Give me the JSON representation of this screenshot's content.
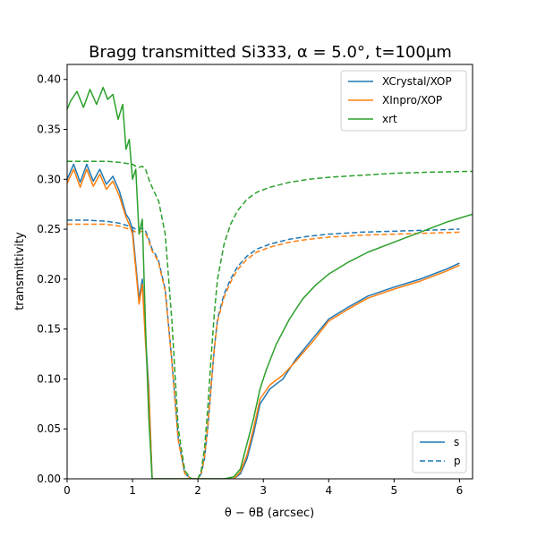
{
  "chart_data": {
    "type": "line",
    "title": "Bragg transmitted Si333, α = 5.0°, t=100μm",
    "xlabel": "θ − θB (arcsec)",
    "ylabel": "transmittivity",
    "xlim": [
      0,
      6.2
    ],
    "ylim": [
      0,
      0.415
    ],
    "x_ticks": [
      0,
      1,
      2,
      3,
      4,
      5,
      6
    ],
    "x_tick_labels": [
      "0",
      "1",
      "2",
      "3",
      "4",
      "5",
      "6"
    ],
    "y_ticks": [
      0.0,
      0.05,
      0.1,
      0.15,
      0.2,
      0.25,
      0.3,
      0.35,
      0.4
    ],
    "y_tick_labels": [
      "0.00",
      "0.05",
      "0.10",
      "0.15",
      "0.20",
      "0.25",
      "0.30",
      "0.35",
      "0.40"
    ],
    "grid": false,
    "legend_programs": {
      "placement": "top-right",
      "entries": [
        {
          "label": "XCrystal/XOP",
          "color": "#1f77b4"
        },
        {
          "label": "XInpro/XOP",
          "color": "#ff7f0e"
        },
        {
          "label": "xrt",
          "color": "#2ca02c"
        }
      ]
    },
    "legend_polarization": {
      "placement": "bottom-right",
      "entries": [
        {
          "label": "s",
          "style": "solid"
        },
        {
          "label": "p",
          "style": "dashed"
        }
      ]
    },
    "series": [
      {
        "name": "XCrystal/XOP",
        "polarization": "s",
        "color": "#1f77b4",
        "style": "solid",
        "x": [
          0.0,
          0.1,
          0.2,
          0.3,
          0.4,
          0.5,
          0.6,
          0.7,
          0.8,
          0.9,
          0.95,
          1.0,
          1.05,
          1.1,
          1.15,
          1.2,
          1.25,
          1.3,
          1.5,
          1.8,
          2.0,
          2.2,
          2.4,
          2.55,
          2.65,
          2.75,
          2.85,
          2.95,
          3.1,
          3.3,
          3.5,
          3.75,
          4.0,
          4.3,
          4.6,
          5.0,
          5.4,
          5.8,
          6.0
        ],
        "y": [
          0.3,
          0.315,
          0.297,
          0.315,
          0.298,
          0.31,
          0.295,
          0.303,
          0.288,
          0.265,
          0.26,
          0.25,
          0.215,
          0.18,
          0.2,
          0.14,
          0.09,
          0.0,
          0.0,
          0.0,
          0.0,
          0.0,
          0.0,
          0.0,
          0.005,
          0.02,
          0.045,
          0.075,
          0.09,
          0.1,
          0.12,
          0.14,
          0.16,
          0.172,
          0.183,
          0.192,
          0.2,
          0.21,
          0.216
        ]
      },
      {
        "name": "XInpro/XOP",
        "polarization": "s",
        "color": "#ff7f0e",
        "style": "solid",
        "x": [
          0.0,
          0.1,
          0.2,
          0.3,
          0.4,
          0.5,
          0.6,
          0.7,
          0.8,
          0.9,
          0.95,
          1.0,
          1.05,
          1.1,
          1.15,
          1.2,
          1.25,
          1.3,
          1.5,
          1.8,
          2.0,
          2.2,
          2.4,
          2.55,
          2.65,
          2.75,
          2.85,
          2.95,
          3.1,
          3.3,
          3.5,
          3.75,
          4.0,
          4.3,
          4.6,
          5.0,
          5.4,
          5.8,
          6.0
        ],
        "y": [
          0.296,
          0.31,
          0.292,
          0.31,
          0.293,
          0.305,
          0.29,
          0.298,
          0.283,
          0.262,
          0.255,
          0.245,
          0.21,
          0.175,
          0.195,
          0.135,
          0.085,
          0.0,
          0.0,
          0.0,
          0.0,
          0.0,
          0.0,
          0.0,
          0.007,
          0.024,
          0.05,
          0.08,
          0.094,
          0.104,
          0.118,
          0.137,
          0.158,
          0.17,
          0.181,
          0.19,
          0.198,
          0.208,
          0.214
        ]
      },
      {
        "name": "xrt",
        "polarization": "s",
        "color": "#2ca02c",
        "style": "solid",
        "x": [
          0.0,
          0.05,
          0.15,
          0.25,
          0.35,
          0.45,
          0.55,
          0.62,
          0.7,
          0.78,
          0.85,
          0.9,
          0.95,
          1.0,
          1.05,
          1.1,
          1.15,
          1.2,
          1.25,
          1.3,
          1.5,
          1.8,
          2.0,
          2.2,
          2.4,
          2.55,
          2.65,
          2.75,
          2.85,
          2.95,
          3.05,
          3.2,
          3.4,
          3.6,
          3.8,
          4.0,
          4.3,
          4.6,
          5.0,
          5.4,
          5.8,
          6.2
        ],
        "y": [
          0.37,
          0.378,
          0.388,
          0.372,
          0.39,
          0.375,
          0.392,
          0.38,
          0.385,
          0.36,
          0.375,
          0.33,
          0.34,
          0.3,
          0.31,
          0.245,
          0.26,
          0.15,
          0.06,
          0.0,
          0.0,
          0.0,
          0.0,
          0.0,
          0.0,
          0.002,
          0.01,
          0.035,
          0.06,
          0.09,
          0.11,
          0.135,
          0.16,
          0.18,
          0.194,
          0.205,
          0.217,
          0.227,
          0.237,
          0.247,
          0.257,
          0.265
        ]
      },
      {
        "name": "XCrystal/XOP",
        "polarization": "p",
        "color": "#1f77b4",
        "style": "dashed",
        "x": [
          0.0,
          0.3,
          0.6,
          0.8,
          0.9,
          1.0,
          1.05,
          1.1,
          1.15,
          1.2,
          1.25,
          1.3,
          1.35,
          1.4,
          1.5,
          1.6,
          1.7,
          1.8,
          1.9,
          2.0,
          2.05,
          2.1,
          2.15,
          2.2,
          2.25,
          2.3,
          2.4,
          2.5,
          2.6,
          2.75,
          2.9,
          3.1,
          3.4,
          3.7,
          4.0,
          4.5,
          5.0,
          5.5,
          6.0
        ],
        "y": [
          0.259,
          0.259,
          0.258,
          0.256,
          0.254,
          0.252,
          0.25,
          0.25,
          0.251,
          0.248,
          0.24,
          0.23,
          0.225,
          0.218,
          0.19,
          0.12,
          0.04,
          0.005,
          0.0,
          0.0,
          0.005,
          0.02,
          0.05,
          0.09,
          0.13,
          0.16,
          0.185,
          0.2,
          0.212,
          0.223,
          0.23,
          0.235,
          0.24,
          0.243,
          0.245,
          0.247,
          0.248,
          0.249,
          0.25
        ]
      },
      {
        "name": "XInpro/XOP",
        "polarization": "p",
        "color": "#ff7f0e",
        "style": "dashed",
        "x": [
          0.0,
          0.3,
          0.6,
          0.8,
          0.9,
          1.0,
          1.05,
          1.1,
          1.15,
          1.2,
          1.25,
          1.3,
          1.35,
          1.4,
          1.5,
          1.6,
          1.7,
          1.8,
          1.9,
          2.0,
          2.05,
          2.1,
          2.15,
          2.2,
          2.25,
          2.3,
          2.4,
          2.5,
          2.6,
          2.75,
          2.9,
          3.1,
          3.4,
          3.7,
          4.0,
          4.5,
          5.0,
          5.5,
          6.0
        ],
        "y": [
          0.255,
          0.255,
          0.255,
          0.253,
          0.251,
          0.249,
          0.247,
          0.247,
          0.248,
          0.246,
          0.238,
          0.228,
          0.223,
          0.216,
          0.188,
          0.118,
          0.038,
          0.005,
          0.0,
          0.0,
          0.006,
          0.022,
          0.052,
          0.092,
          0.13,
          0.158,
          0.182,
          0.197,
          0.209,
          0.22,
          0.227,
          0.232,
          0.237,
          0.24,
          0.242,
          0.244,
          0.245,
          0.246,
          0.247
        ]
      },
      {
        "name": "xrt",
        "polarization": "p",
        "color": "#2ca02c",
        "style": "dashed",
        "x": [
          0.0,
          0.3,
          0.6,
          0.8,
          0.9,
          1.0,
          1.05,
          1.1,
          1.15,
          1.2,
          1.25,
          1.3,
          1.35,
          1.4,
          1.5,
          1.6,
          1.7,
          1.8,
          1.9,
          2.0,
          2.05,
          2.1,
          2.15,
          2.2,
          2.25,
          2.3,
          2.4,
          2.5,
          2.6,
          2.75,
          2.9,
          3.1,
          3.4,
          3.7,
          4.0,
          4.5,
          5.0,
          5.5,
          6.2
        ],
        "y": [
          0.318,
          0.318,
          0.318,
          0.317,
          0.316,
          0.315,
          0.313,
          0.312,
          0.313,
          0.31,
          0.3,
          0.292,
          0.285,
          0.278,
          0.245,
          0.16,
          0.05,
          0.008,
          0.0,
          0.0,
          0.008,
          0.03,
          0.07,
          0.12,
          0.165,
          0.2,
          0.235,
          0.255,
          0.268,
          0.28,
          0.287,
          0.292,
          0.297,
          0.3,
          0.302,
          0.304,
          0.306,
          0.307,
          0.308
        ]
      }
    ]
  }
}
